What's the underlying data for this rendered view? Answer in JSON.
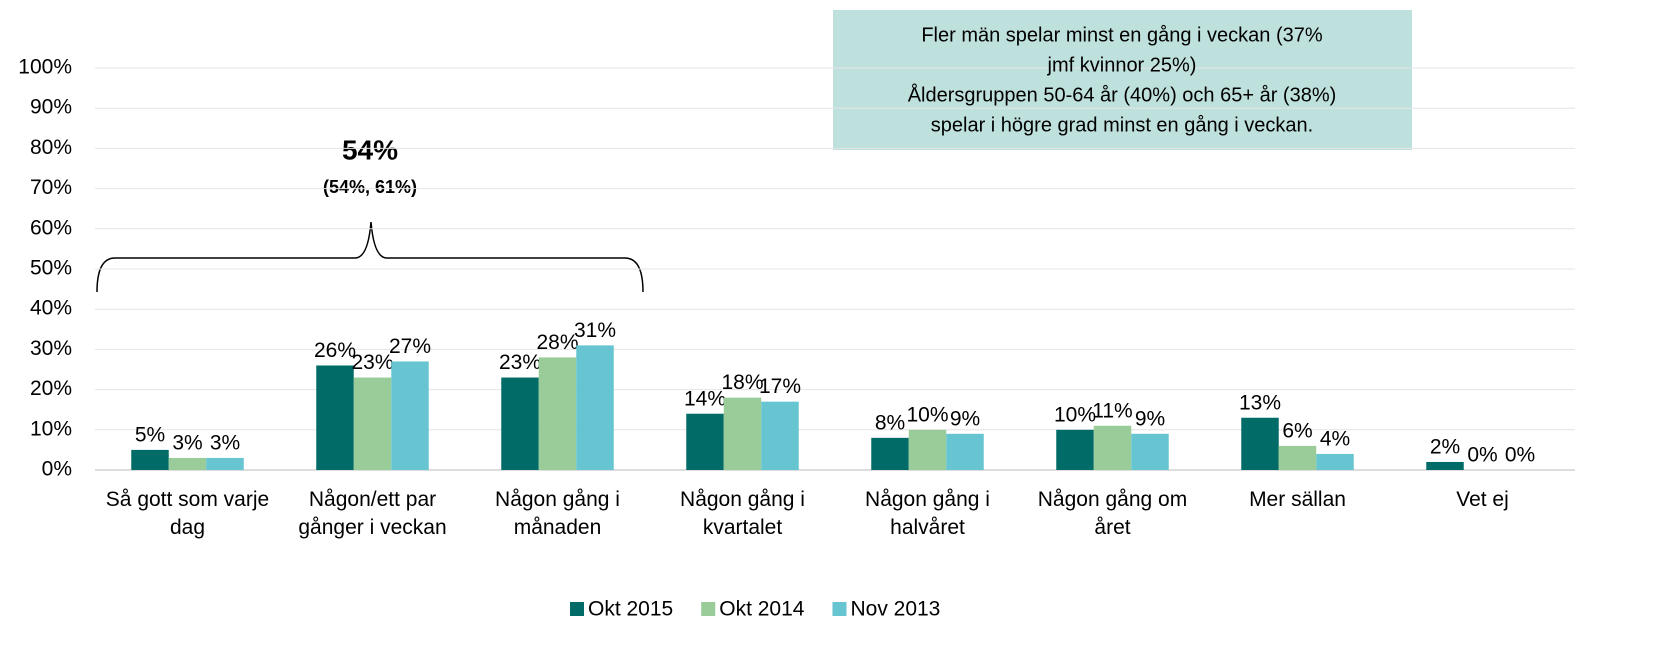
{
  "chart_data": {
    "type": "bar",
    "categories": [
      "Så gott som varje dag",
      "Någon/ett par gånger i veckan",
      "Någon gång i månaden",
      "Någon gång i kvartalet",
      "Någon gång i halvåret",
      "Någon gång om året",
      "Mer sällan",
      "Vet ej"
    ],
    "series": [
      {
        "name": "Okt 2015",
        "color": "#006b67",
        "values": [
          5,
          26,
          23,
          14,
          8,
          10,
          13,
          2
        ],
        "value_labels": [
          "5%",
          "26%",
          "23%",
          "14%",
          "8%",
          "10%",
          "13%",
          "2%"
        ]
      },
      {
        "name": "Okt 2014",
        "color": "#99cc99",
        "values": [
          3,
          23,
          28,
          18,
          10,
          11,
          6,
          0
        ],
        "value_labels": [
          "3%",
          "23%",
          "28%",
          "18%",
          "10%",
          "11%",
          "6%",
          "0%"
        ]
      },
      {
        "name": "Nov 2013",
        "color": "#66c5d1",
        "values": [
          3,
          27,
          31,
          17,
          9,
          9,
          4,
          0
        ],
        "value_labels": [
          "3%",
          "27%",
          "31%",
          "17%",
          "9%",
          "9%",
          "4%",
          "0%"
        ]
      }
    ],
    "ylim": [
      0,
      100
    ],
    "yticks": [
      {
        "value": 0,
        "label": "0%"
      },
      {
        "value": 10,
        "label": "10%"
      },
      {
        "value": 20,
        "label": "20%"
      },
      {
        "value": 30,
        "label": "30%"
      },
      {
        "value": 40,
        "label": "40%"
      },
      {
        "value": 50,
        "label": "50%"
      },
      {
        "value": 60,
        "label": "60%"
      },
      {
        "value": 70,
        "label": "70%"
      },
      {
        "value": 80,
        "label": "80%"
      },
      {
        "value": 90,
        "label": "90%"
      },
      {
        "value": 100,
        "label": "100%"
      }
    ],
    "grid": true,
    "legend": "bottom",
    "annotations": {
      "bracket_value": "54%",
      "bracket_sub": "(54%, 61%)",
      "box": [
        "Fler män spelar minst en gång i veckan (37%",
        "jmf kvinnor 25%)",
        "Åldersgruppen 50-64 år (40%) och 65+ år (38%)",
        "spelar i högre grad minst en gång i veckan."
      ]
    }
  }
}
